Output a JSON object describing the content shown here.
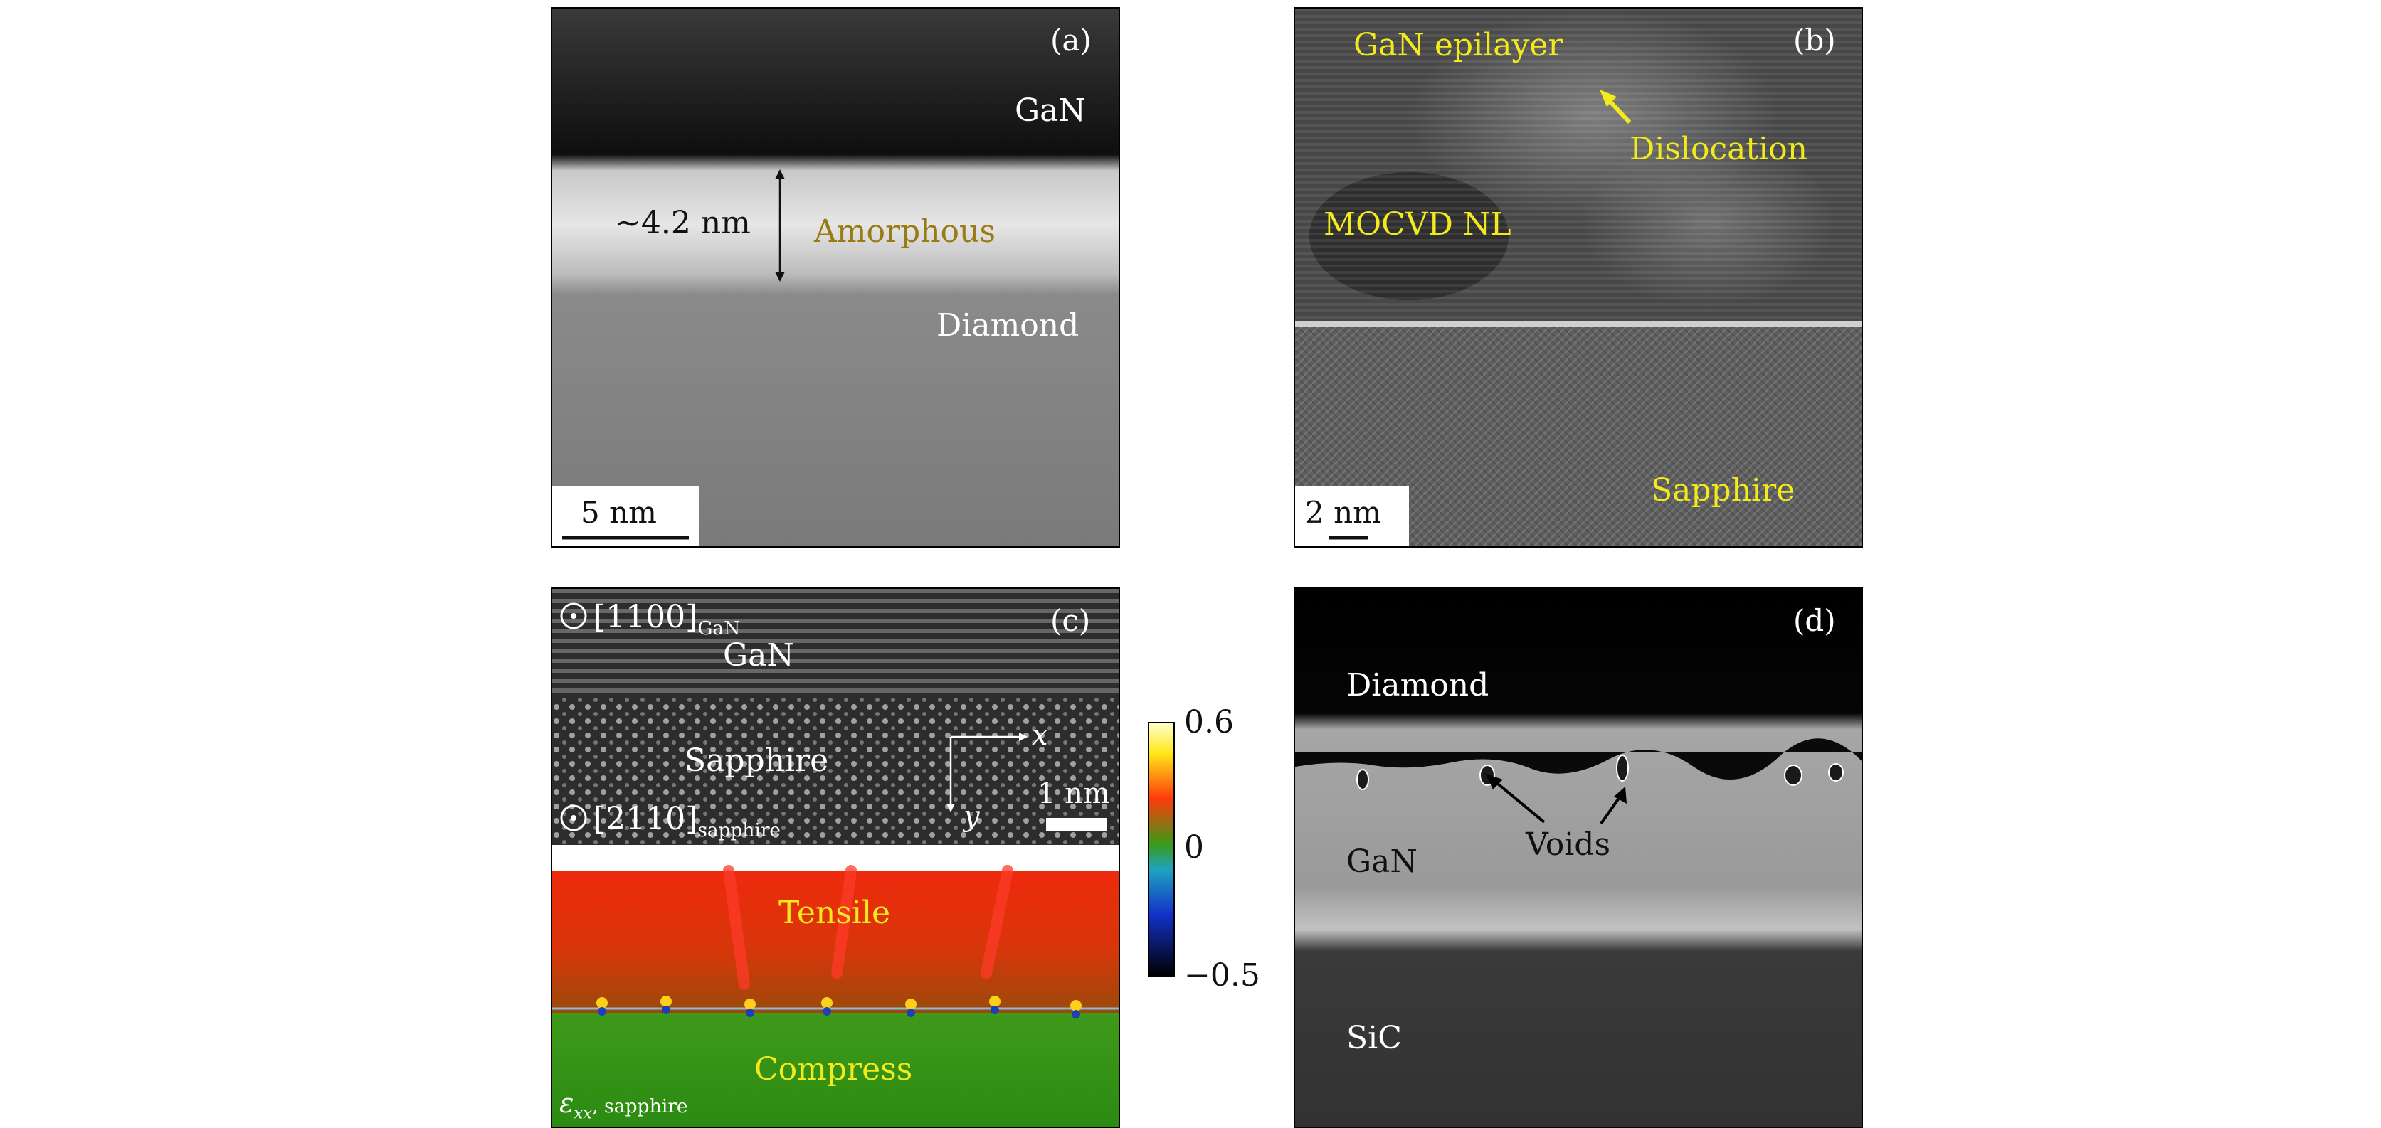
{
  "panels": {
    "a": {
      "tag": "(a)",
      "labels": {
        "top": "GaN",
        "mid": "Amorphous",
        "bottom": "Diamond",
        "thickness": "~4.2 nm"
      },
      "scalebar": "5 nm"
    },
    "b": {
      "tag": "(b)",
      "labels": {
        "top": "GaN epilayer",
        "defect": "Dislocation",
        "layer": "MOCVD NL",
        "substrate": "Sapphire"
      },
      "scalebar": "2 nm"
    },
    "c": {
      "tag": "(c)",
      "labels": {
        "dir1_base": "[1100]",
        "dir1_sub": "GaN",
        "gan": "GaN",
        "sapphire": "Sapphire",
        "dir2_base": "[2110]",
        "dir2_sub": "sapphire",
        "axis_x": "x",
        "axis_y": "y",
        "tensile": "Tensile",
        "compress": "Compress",
        "strain_base": "ε",
        "strain_sub": "xx",
        "strain_suffix": ", sapphire"
      },
      "scalebar": "1 nm",
      "colorbar": {
        "max": "0.6",
        "mid": "0",
        "min": "−0.5"
      }
    },
    "d": {
      "tag": "(d)",
      "labels": {
        "top": "Diamond",
        "voids": "Voids",
        "mid": "GaN",
        "bottom": "SiC"
      }
    }
  }
}
